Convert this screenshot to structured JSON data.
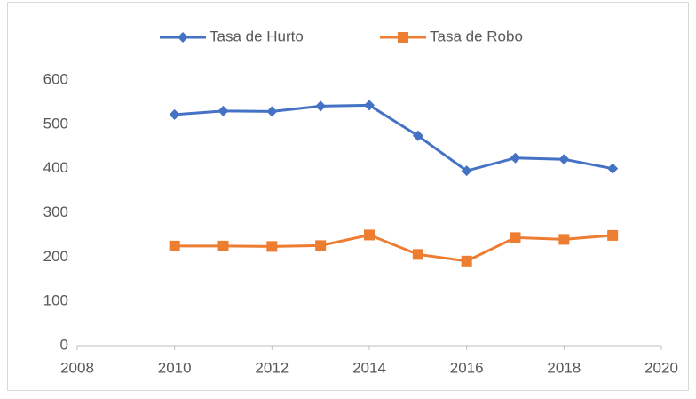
{
  "chart_data": {
    "type": "line",
    "x": [
      2010,
      2011,
      2012,
      2013,
      2014,
      2015,
      2016,
      2017,
      2018,
      2019
    ],
    "series": [
      {
        "name": "Tasa de Hurto",
        "color": "#4472c4",
        "marker": "diamond",
        "values": [
          522,
          530,
          529,
          541,
          543,
          474,
          395,
          424,
          421,
          400
        ]
      },
      {
        "name": "Tasa de Robo",
        "color": "#ed7d31",
        "marker": "square",
        "values": [
          225,
          225,
          224,
          226,
          250,
          206,
          191,
          244,
          240,
          249
        ]
      }
    ],
    "xlim": [
      2008,
      2020
    ],
    "xticks": [
      2008,
      2010,
      2012,
      2014,
      2016,
      2018,
      2020
    ],
    "ylim": [
      0,
      600
    ],
    "yticks": [
      0,
      100,
      200,
      300,
      400,
      500,
      600
    ],
    "grid": false,
    "legend": "top"
  }
}
